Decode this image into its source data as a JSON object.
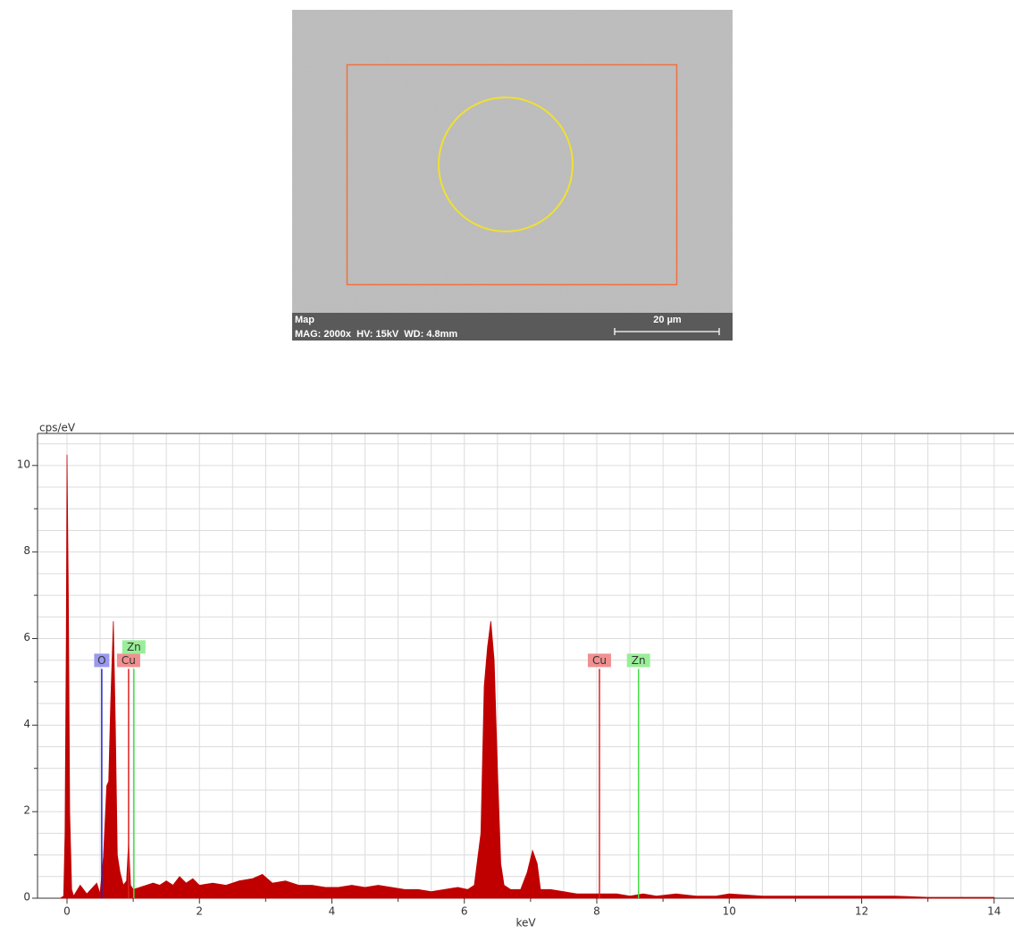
{
  "image": {
    "mode": "Map",
    "info": "MAG: 2000x  HV: 15kV  WD: 4.8mm",
    "scale": "20 µm"
  },
  "chart_data": {
    "type": "area",
    "y_label": "cps/eV",
    "x_label": "keV",
    "color": "#c00000",
    "xlim": [
      -0.445,
      14.3
    ],
    "ylim": [
      0,
      10.74
    ],
    "xticks": [
      0,
      2,
      4,
      6,
      8,
      10,
      12,
      14
    ],
    "x_minor_ticks": [
      1,
      3,
      5,
      7,
      9,
      11,
      13
    ],
    "yticks": [
      0,
      2,
      4,
      6,
      8,
      10
    ],
    "y_minor_ticks": [
      1,
      3,
      5,
      7,
      9
    ],
    "x_grid": [
      0,
      0.5,
      1,
      1.5,
      2,
      2.5,
      3,
      3.5,
      4,
      4.5,
      5,
      5.5,
      6,
      6.5,
      7,
      7.5,
      8,
      8.5,
      9,
      9.5,
      10,
      10.5,
      11,
      11.5,
      12,
      12.5,
      13,
      13.5,
      14
    ],
    "y_grid": [
      0.5,
      1,
      1.5,
      2,
      2.5,
      3,
      3.5,
      4,
      4.5,
      5,
      5.5,
      6,
      6.5,
      7,
      7.5,
      8,
      8.5,
      9,
      9.5,
      10,
      10.5
    ],
    "grid": true,
    "x": [
      -0.1,
      -0.05,
      -0.03,
      -0.01,
      0,
      0.02,
      0.04,
      0.07,
      0.1,
      0.2,
      0.3,
      0.45,
      0.5,
      0.55,
      0.6,
      0.63,
      0.66,
      0.7,
      0.73,
      0.76,
      0.8,
      0.85,
      0.9,
      0.93,
      0.96,
      1,
      1.1,
      1.2,
      1.3,
      1.4,
      1.5,
      1.6,
      1.7,
      1.8,
      1.9,
      2,
      2.2,
      2.4,
      2.6,
      2.8,
      2.95,
      3.1,
      3.3,
      3.5,
      3.7,
      3.9,
      4.1,
      4.3,
      4.5,
      4.7,
      4.9,
      5.1,
      5.3,
      5.5,
      5.7,
      5.9,
      6.05,
      6.15,
      6.25,
      6.3,
      6.35,
      6.4,
      6.45,
      6.5,
      6.55,
      6.6,
      6.7,
      6.85,
      6.95,
      7.03,
      7.1,
      7.15,
      7.3,
      7.5,
      7.7,
      7.9,
      8.1,
      8.3,
      8.5,
      8.7,
      8.9,
      9.2,
      9.5,
      9.8,
      10,
      10.5,
      11,
      11.5,
      12,
      12.5,
      13,
      13.5,
      14
    ],
    "values": [
      0,
      0.05,
      1.5,
      6,
      10.25,
      7,
      2,
      0.2,
      0.05,
      0.3,
      0.1,
      0.35,
      0.1,
      0.95,
      2.6,
      2.7,
      4.5,
      6.4,
      4,
      1,
      0.6,
      0.3,
      0.4,
      1.3,
      0.3,
      0.2,
      0.25,
      0.3,
      0.35,
      0.3,
      0.4,
      0.3,
      0.5,
      0.35,
      0.45,
      0.3,
      0.35,
      0.3,
      0.4,
      0.45,
      0.55,
      0.35,
      0.4,
      0.3,
      0.3,
      0.25,
      0.25,
      0.3,
      0.25,
      0.3,
      0.25,
      0.2,
      0.2,
      0.15,
      0.2,
      0.25,
      0.2,
      0.3,
      1.5,
      4.9,
      5.8,
      6.4,
      5.5,
      3,
      0.8,
      0.3,
      0.2,
      0.2,
      0.6,
      1.1,
      0.8,
      0.2,
      0.2,
      0.15,
      0.1,
      0.1,
      0.1,
      0.1,
      0.05,
      0.1,
      0.05,
      0.1,
      0.05,
      0.05,
      0.1,
      0.05,
      0.05,
      0.05,
      0.05,
      0.05,
      0.02,
      0.02,
      0.02
    ],
    "markers": [
      {
        "label": "O",
        "energy": 0.525,
        "height": 5.3,
        "color": "#2222cc",
        "label_color": "#9999ee"
      },
      {
        "label": "Cu",
        "energy": 0.93,
        "height": 5.3,
        "color": "#dd2222",
        "label_color": "#f09090"
      },
      {
        "label": "Zn",
        "energy": 1.01,
        "height": 5.3,
        "color": "#44dd44",
        "label_color": "#99ee99"
      },
      {
        "label": "Cu",
        "energy": 8.04,
        "height": 5.3,
        "color": "#dd2222",
        "label_color": "#f09090"
      },
      {
        "label": "Zn",
        "energy": 8.63,
        "height": 5.3,
        "color": "#44dd44",
        "label_color": "#99ee99"
      }
    ]
  }
}
